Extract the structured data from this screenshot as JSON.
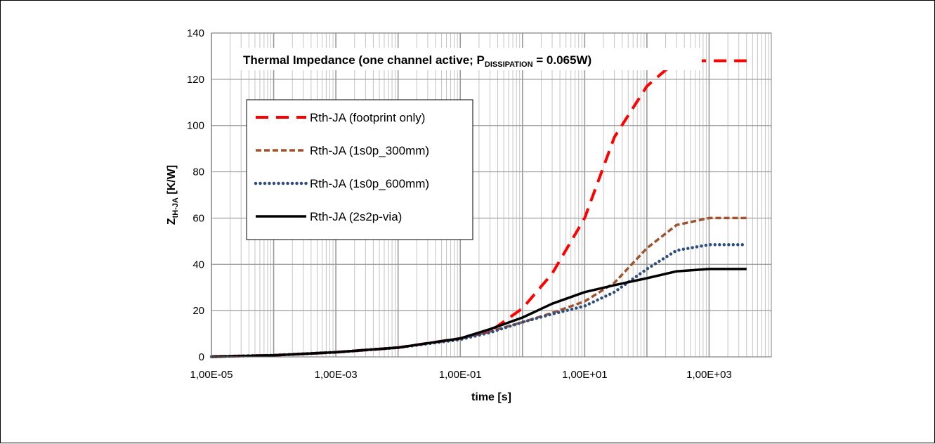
{
  "chart_data": {
    "type": "line",
    "title": {
      "main": "Thermal Impedance (one channel active; P",
      "sub": "DISSIPATION",
      "tail": " = 0.065W)"
    },
    "xlabel": "time  [s]",
    "ylabel": {
      "main": "Z",
      "sub": "tH-JA",
      "tail": " [K/W]"
    },
    "x_scale": "log",
    "xlim": [
      1e-05,
      10000
    ],
    "ylim": [
      0,
      140
    ],
    "x_ticks": [
      1e-05,
      0.001,
      0.1,
      10,
      1000
    ],
    "x_tick_labels": [
      "1,00E-05",
      "1,00E-03",
      "1,00E-01",
      "1,00E+01",
      "1,00E+03"
    ],
    "y_ticks": [
      0,
      20,
      40,
      60,
      80,
      100,
      120,
      140
    ],
    "grid": true,
    "legend_position": "left",
    "series": [
      {
        "name": "Rth-JA (footprint only)",
        "color": "#ff0000",
        "style": "dashed",
        "x": [
          1e-05,
          0.0001,
          0.001,
          0.01,
          0.1,
          0.3,
          1,
          3,
          10,
          30,
          100,
          200,
          400,
          1000,
          4000
        ],
        "y": [
          0.1,
          0.7,
          2,
          4,
          8,
          11,
          21,
          36,
          60,
          95,
          117,
          124,
          128,
          128,
          128
        ]
      },
      {
        "name": "Rth-JA (1s0p_300mm)",
        "color": "#a0522d",
        "style": "dashed-short",
        "x": [
          1e-05,
          0.0001,
          0.001,
          0.01,
          0.1,
          0.3,
          1,
          3,
          10,
          30,
          100,
          300,
          1000,
          4000
        ],
        "y": [
          0.1,
          0.7,
          2,
          4,
          8,
          11,
          15,
          19,
          24,
          32,
          47,
          57,
          60,
          60
        ]
      },
      {
        "name": "Rth-JA (1s0p_600mm)",
        "color": "#2e4f7e",
        "style": "dotted",
        "x": [
          1e-05,
          0.0001,
          0.001,
          0.01,
          0.1,
          0.3,
          1,
          3,
          10,
          30,
          100,
          300,
          1000,
          4000
        ],
        "y": [
          0.1,
          0.7,
          2,
          4,
          7.5,
          10.5,
          15,
          18.5,
          22,
          28,
          38,
          46,
          48.5,
          48.5
        ]
      },
      {
        "name": "Rth-JA (2s2p-via)",
        "color": "#000000",
        "style": "solid",
        "x": [
          1e-05,
          0.0001,
          0.001,
          0.01,
          0.1,
          0.3,
          1,
          3,
          10,
          30,
          100,
          300,
          1000,
          4000
        ],
        "y": [
          0.1,
          0.7,
          2,
          4,
          8,
          12,
          17,
          23,
          28,
          31,
          34,
          37,
          38,
          38
        ]
      }
    ]
  }
}
